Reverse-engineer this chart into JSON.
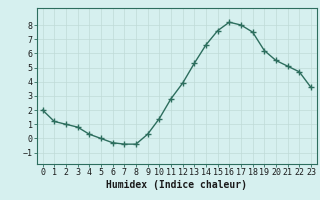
{
  "x": [
    0,
    1,
    2,
    3,
    4,
    5,
    6,
    7,
    8,
    9,
    10,
    11,
    12,
    13,
    14,
    15,
    16,
    17,
    18,
    19,
    20,
    21,
    22,
    23
  ],
  "y": [
    2.0,
    1.2,
    1.0,
    0.8,
    0.3,
    0.0,
    -0.3,
    -0.4,
    -0.4,
    0.3,
    1.4,
    2.8,
    3.9,
    5.3,
    6.6,
    7.6,
    8.2,
    8.0,
    7.5,
    6.2,
    5.5,
    5.1,
    4.7,
    3.6
  ],
  "line_color": "#2d6e5e",
  "marker": "+",
  "markersize": 4,
  "linewidth": 1.0,
  "xlabel": "Humidex (Indice chaleur)",
  "xlabel_fontsize": 7,
  "xlim": [
    -0.5,
    23.5
  ],
  "ylim": [
    -1.8,
    9.2
  ],
  "yticks": [
    -1,
    0,
    1,
    2,
    3,
    4,
    5,
    6,
    7,
    8
  ],
  "xtick_labels": [
    "0",
    "1",
    "2",
    "3",
    "4",
    "5",
    "6",
    "7",
    "8",
    "9",
    "10",
    "11",
    "12",
    "13",
    "14",
    "15",
    "16",
    "17",
    "18",
    "19",
    "20",
    "21",
    "22",
    "23"
  ],
  "background_color": "#d6f0ef",
  "grid_color": "#c0dbd8",
  "tick_fontsize": 6,
  "spine_color": "#2d6e5e"
}
